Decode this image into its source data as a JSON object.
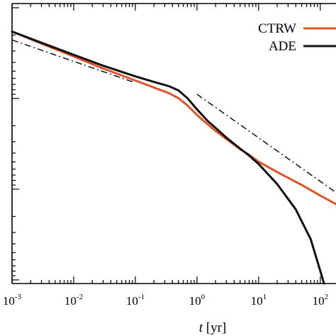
{
  "chart_data": {
    "type": "line",
    "xscale": "log",
    "yscale": "log",
    "xlim": [
      0.001,
      200
    ],
    "xlabel_var": "t",
    "xlabel_unit": "[yr]",
    "ylabel": "",
    "grid": false,
    "legend_position": "top-right",
    "x_ticks": [
      {
        "base": "10",
        "exp": "-3",
        "value": 0.001
      },
      {
        "base": "10",
        "exp": "-2",
        "value": 0.01
      },
      {
        "base": "10",
        "exp": "-1",
        "value": 0.1
      },
      {
        "base": "10",
        "exp": "0",
        "value": 1
      },
      {
        "base": "10",
        "exp": "1",
        "value": 10
      },
      {
        "base": "10",
        "exp": "2",
        "value": 100
      }
    ],
    "series": [
      {
        "name": "CTRW",
        "color": "#e2532a",
        "style": "solid",
        "x": [
          0.001,
          0.003,
          0.01,
          0.03,
          0.1,
          0.2,
          0.35,
          0.5,
          0.7,
          1.0,
          1.5,
          2,
          3,
          5,
          7,
          10,
          20,
          50,
          100,
          200
        ],
        "y": [
          0.9,
          0.857,
          0.811,
          0.768,
          0.725,
          0.7,
          0.68,
          0.662,
          0.636,
          0.602,
          0.568,
          0.545,
          0.516,
          0.48,
          0.46,
          0.435,
          0.398,
          0.352,
          0.314,
          0.278
        ]
      },
      {
        "name": "ADE",
        "color": "#111111",
        "style": "solid",
        "x": [
          0.001,
          0.003,
          0.01,
          0.03,
          0.1,
          0.2,
          0.35,
          0.5,
          0.7,
          1.0,
          1.5,
          2,
          3,
          5,
          7,
          10,
          20,
          40,
          70,
          100,
          115
        ],
        "y": [
          0.9,
          0.86,
          0.817,
          0.778,
          0.74,
          0.72,
          0.705,
          0.69,
          0.662,
          0.622,
          0.58,
          0.556,
          0.521,
          0.482,
          0.457,
          0.427,
          0.355,
          0.265,
          0.158,
          0.045,
          0.0
        ]
      }
    ],
    "guide_lines": [
      {
        "style": "dash-dot",
        "color": "#111111",
        "x": [
          0.001,
          0.1
        ],
        "y": [
          0.87,
          0.717
        ]
      },
      {
        "style": "dash-dot",
        "color": "#111111",
        "x": [
          1.0,
          200
        ],
        "y": [
          0.676,
          0.318
        ]
      }
    ]
  }
}
